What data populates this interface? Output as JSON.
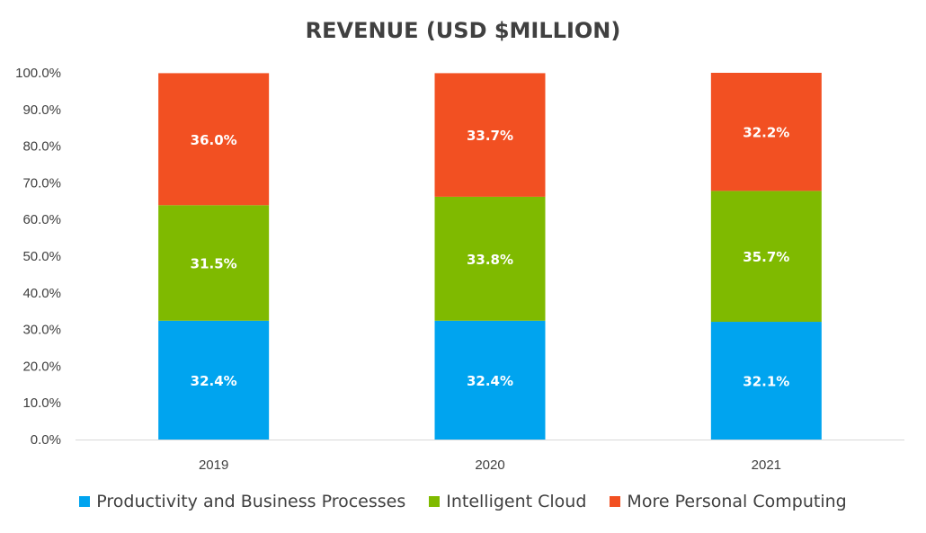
{
  "chart_data": {
    "type": "bar",
    "stacked": true,
    "title": "REVENUE (USD $MILLION)",
    "categories": [
      "2019",
      "2020",
      "2021"
    ],
    "series": [
      {
        "name": "Productivity and Business Processes",
        "color": "#00A4EF",
        "values": [
          32.4,
          32.4,
          32.1
        ],
        "labels": [
          "32.4%",
          "32.4%",
          "32.1%"
        ]
      },
      {
        "name": "Intelligent Cloud",
        "color": "#7FBA00",
        "values": [
          31.5,
          33.8,
          35.7
        ],
        "labels": [
          "31.5%",
          "33.8%",
          "35.7%"
        ]
      },
      {
        "name": "More Personal Computing",
        "color": "#F25022",
        "values": [
          36.0,
          33.7,
          32.2
        ],
        "labels": [
          "36.0%",
          "33.7%",
          "32.2%"
        ]
      }
    ],
    "ylim": [
      0,
      100
    ],
    "yticks": [
      "0.0%",
      "10.0%",
      "20.0%",
      "30.0%",
      "40.0%",
      "50.0%",
      "60.0%",
      "70.0%",
      "80.0%",
      "90.0%",
      "100.0%"
    ],
    "grid": false,
    "legend_position": "bottom"
  }
}
